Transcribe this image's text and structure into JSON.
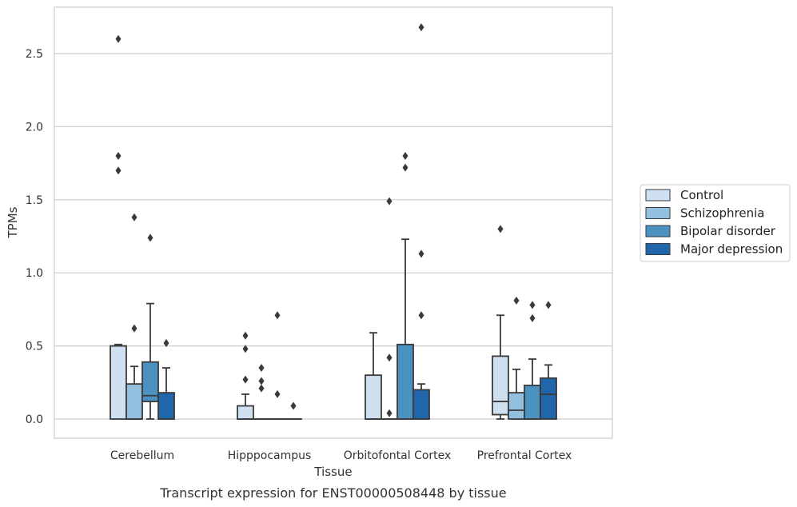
{
  "chart_data": {
    "type": "box",
    "xlabel": "Tissue",
    "ylabel": "TPMs",
    "caption": "Transcript expression for ENST00000508448 by tissue",
    "ylim": [
      -0.13,
      2.83
    ],
    "yticks": [
      0.0,
      0.5,
      1.0,
      1.5,
      2.0,
      2.5
    ],
    "ytick_labels": [
      "0.0",
      "0.5",
      "1.0",
      "1.5",
      "2.0",
      "2.5"
    ],
    "grid": "horizontal",
    "legend_position": "right",
    "categories": [
      "Cerebellum",
      "Hipppocampus",
      "Orbitofontal Cortex",
      "Prefrontal Cortex"
    ],
    "series": [
      {
        "name": "Control",
        "color": "#cfe0f1",
        "boxes": [
          {
            "q1": 0.0,
            "median": 0.5,
            "q3": 0.5,
            "whisker_low": 0.0,
            "whisker_high": 0.51,
            "outliers": [
              1.7,
              1.8,
              2.6
            ]
          },
          {
            "q1": 0.0,
            "median": 0.0,
            "q3": 0.09,
            "whisker_low": 0.0,
            "whisker_high": 0.17,
            "outliers": [
              0.27,
              0.48,
              0.57
            ]
          },
          {
            "q1": 0.0,
            "median": 0.0,
            "q3": 0.3,
            "whisker_low": 0.0,
            "whisker_high": 0.59,
            "outliers": []
          },
          {
            "q1": 0.03,
            "median": 0.12,
            "q3": 0.43,
            "whisker_low": 0.0,
            "whisker_high": 0.71,
            "outliers": [
              1.3
            ]
          }
        ]
      },
      {
        "name": "Schizophrenia",
        "color": "#94c0df",
        "boxes": [
          {
            "q1": 0.0,
            "median": 0.0,
            "q3": 0.24,
            "whisker_low": 0.0,
            "whisker_high": 0.36,
            "outliers": [
              0.62,
              1.38
            ]
          },
          {
            "q1": 0.0,
            "median": 0.0,
            "q3": 0.0,
            "whisker_low": 0.0,
            "whisker_high": 0.0,
            "outliers": [
              0.21,
              0.26,
              0.35
            ]
          },
          {
            "q1": 0.0,
            "median": 0.0,
            "q3": 0.0,
            "whisker_low": 0.0,
            "whisker_high": 0.0,
            "outliers": [
              0.04,
              0.42,
              1.49
            ]
          },
          {
            "q1": 0.0,
            "median": 0.06,
            "q3": 0.18,
            "whisker_low": 0.0,
            "whisker_high": 0.34,
            "outliers": [
              0.81
            ]
          }
        ]
      },
      {
        "name": "Bipolar disorder",
        "color": "#4b92c3",
        "boxes": [
          {
            "q1": 0.12,
            "median": 0.16,
            "q3": 0.39,
            "whisker_low": 0.0,
            "whisker_high": 0.79,
            "outliers": [
              1.24
            ]
          },
          {
            "q1": 0.0,
            "median": 0.0,
            "q3": 0.0,
            "whisker_low": 0.0,
            "whisker_high": 0.0,
            "outliers": [
              0.17,
              0.71
            ]
          },
          {
            "q1": 0.0,
            "median": 0.0,
            "q3": 0.51,
            "whisker_low": 0.0,
            "whisker_high": 1.23,
            "outliers": [
              1.72,
              1.8
            ]
          },
          {
            "q1": 0.0,
            "median": 0.0,
            "q3": 0.23,
            "whisker_low": 0.0,
            "whisker_high": 0.41,
            "outliers": [
              0.69,
              0.78
            ]
          }
        ]
      },
      {
        "name": "Major depression",
        "color": "#2165ab",
        "boxes": [
          {
            "q1": 0.0,
            "median": 0.0,
            "q3": 0.18,
            "whisker_low": 0.0,
            "whisker_high": 0.35,
            "outliers": [
              0.52
            ]
          },
          {
            "q1": 0.0,
            "median": 0.0,
            "q3": 0.0,
            "whisker_low": 0.0,
            "whisker_high": 0.0,
            "outliers": [
              0.09
            ]
          },
          {
            "q1": 0.0,
            "median": 0.0,
            "q3": 0.2,
            "whisker_low": 0.0,
            "whisker_high": 0.24,
            "outliers": [
              0.71,
              1.13,
              2.68
            ]
          },
          {
            "q1": 0.0,
            "median": 0.17,
            "q3": 0.28,
            "whisker_low": 0.0,
            "whisker_high": 0.37,
            "outliers": [
              0.78
            ]
          }
        ]
      }
    ]
  }
}
